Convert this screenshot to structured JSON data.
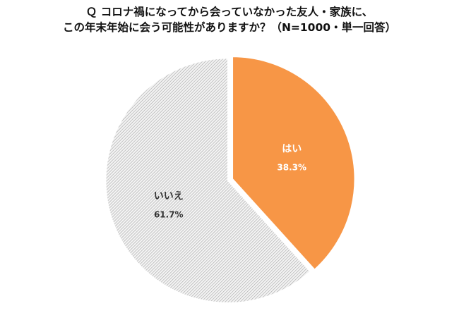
{
  "title_lines": [
    "Ｑ コロナ禍になってから会っていなかった友人・家族に、",
    "この年末年始に会う可能性がありますか？（N=1000・単一回答）"
  ],
  "chart_data": {
    "type": "pie",
    "title": "Ｑ コロナ禍になってから会っていなかった友人・家族に、この年末年始に会う可能性がありますか？（N=1000・単一回答）",
    "slices": [
      {
        "label": "はい",
        "value": 38.3,
        "display": "38.3%",
        "color": "#F79646",
        "pattern": "solid",
        "label_color": "#ffffff"
      },
      {
        "label": "いいえ",
        "value": 61.7,
        "display": "61.7%",
        "color": "#BFBFBF",
        "pattern": "diagonal-hatch",
        "label_color": "#333333"
      }
    ],
    "start_angle_deg": 0,
    "direction": "clockwise",
    "legend": "none"
  }
}
